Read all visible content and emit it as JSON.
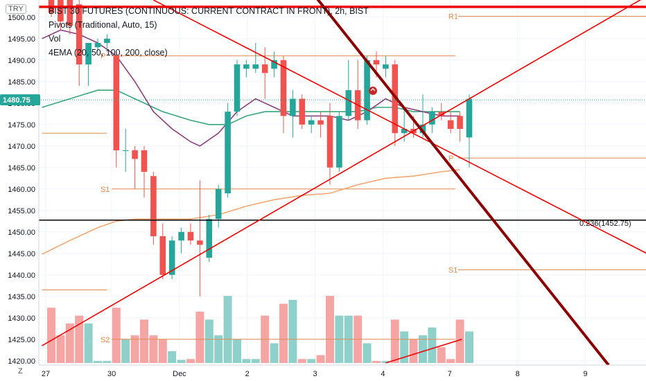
{
  "currency": "TRY",
  "legend": {
    "title": "BIST 30 FUTURES (CONTINUOUS: CURRENT CONTRACT IN FRONT), 2h, BIST",
    "pivots": "Pivots (Traditional, Auto, 15)",
    "vol": "Vol",
    "ema": "4EMA (20, 50, 100, 200, close)"
  },
  "price_badge": "1480.75",
  "fib_label": "0.236(1452.75)",
  "colors": {
    "up": "#26a69a",
    "down": "#ef5350",
    "up_vol": "#8fd1ca",
    "down_vol": "#f5a6a4",
    "pivot": "#e08a4d",
    "ema_green": "#39a77a",
    "ema_purple": "#8e3f7e",
    "ema_orange": "#f4a66f",
    "trend_red": "#ee0000",
    "trend_dark": "#8b0000",
    "badge": "#26a69a"
  },
  "chart_data": {
    "type": "candlestick",
    "symbol": "BIST 30 FUTURES (CONTINUOUS: CURRENT CONTRACT IN FRONT)",
    "interval": "2h",
    "ylim": [
      1419,
      1504
    ],
    "y_ticks": [
      1420,
      1425,
      1430,
      1435,
      1440,
      1445,
      1450,
      1455,
      1460,
      1465,
      1470,
      1475,
      1480,
      1485,
      1490,
      1495,
      1500
    ],
    "x_tick_labels": [
      {
        "label": "27",
        "index": -0.6
      },
      {
        "label": "30",
        "index": 6.5
      },
      {
        "label": "Dec",
        "index": 13.8
      },
      {
        "label": "2",
        "index": 21.1
      },
      {
        "label": "3",
        "index": 28.4
      },
      {
        "label": "4",
        "index": 35.7
      },
      {
        "label": "7",
        "index": 42.9
      },
      {
        "label": "8",
        "index": 50.2
      },
      {
        "label": "9",
        "index": 57.5
      }
    ],
    "last_price": 1480.75,
    "candles": [
      {
        "o": 1504,
        "h": 1506,
        "l": 1500,
        "c": 1501,
        "v": 14
      },
      {
        "o": 1504,
        "h": 1506,
        "l": 1497,
        "c": 1499,
        "v": 7
      },
      {
        "o": 1504,
        "h": 1505,
        "l": 1496,
        "c": 1498,
        "v": 10
      },
      {
        "o": 1503,
        "h": 1504,
        "l": 1484,
        "c": 1489,
        "v": 12
      },
      {
        "o": 1489,
        "h": 1494,
        "l": 1484,
        "c": 1494,
        "v": 10
      },
      {
        "o": 1493,
        "h": 1495,
        "l": 1492,
        "c": 1494,
        "v": 0.5
      },
      {
        "o": 1494,
        "h": 1496,
        "l": 1492,
        "c": 1495,
        "v": 0.5
      },
      {
        "o": 1491,
        "h": 1492,
        "l": 1465,
        "c": 1469,
        "v": 14
      },
      {
        "o": 1469,
        "h": 1474,
        "l": 1464,
        "c": 1469,
        "v": 6
      },
      {
        "o": 1469,
        "h": 1470,
        "l": 1460,
        "c": 1467,
        "v": 7
      },
      {
        "o": 1469,
        "h": 1470,
        "l": 1458,
        "c": 1464,
        "v": 11
      },
      {
        "o": 1463,
        "h": 1464,
        "l": 1447,
        "c": 1449,
        "v": 7
      },
      {
        "o": 1449,
        "h": 1452,
        "l": 1439,
        "c": 1440,
        "v": 6
      },
      {
        "o": 1440,
        "h": 1449,
        "l": 1439,
        "c": 1448,
        "v": 3
      },
      {
        "o": 1448,
        "h": 1451,
        "l": 1445,
        "c": 1450,
        "v": 0.8
      },
      {
        "o": 1450,
        "h": 1452,
        "l": 1447,
        "c": 1448,
        "v": 1
      },
      {
        "o": 1448,
        "h": 1462,
        "l": 1435,
        "c": 1447,
        "v": 13
      },
      {
        "o": 1444,
        "h": 1454,
        "l": 1443,
        "c": 1453,
        "v": 11
      },
      {
        "o": 1453,
        "h": 1461,
        "l": 1451,
        "c": 1460,
        "v": 7
      },
      {
        "o": 1459,
        "h": 1480,
        "l": 1458,
        "c": 1478,
        "v": 17
      },
      {
        "o": 1478,
        "h": 1490,
        "l": 1477,
        "c": 1489,
        "v": 6
      },
      {
        "o": 1488,
        "h": 1490,
        "l": 1486,
        "c": 1489,
        "v": 1
      },
      {
        "o": 1488,
        "h": 1494,
        "l": 1487,
        "c": 1489,
        "v": 1
      },
      {
        "o": 1489,
        "h": 1493,
        "l": 1481,
        "c": 1487,
        "v": 12
      },
      {
        "o": 1488,
        "h": 1492,
        "l": 1486,
        "c": 1490,
        "v": 5
      },
      {
        "o": 1490,
        "h": 1491,
        "l": 1473,
        "c": 1477,
        "v": 15
      },
      {
        "o": 1477,
        "h": 1483,
        "l": 1472,
        "c": 1481,
        "v": 16
      },
      {
        "o": 1481,
        "h": 1482,
        "l": 1474,
        "c": 1475,
        "v": 1
      },
      {
        "o": 1475,
        "h": 1477,
        "l": 1473,
        "c": 1476,
        "v": 1
      },
      {
        "o": 1476,
        "h": 1478,
        "l": 1472,
        "c": 1475,
        "v": 2
      },
      {
        "o": 1477,
        "h": 1480,
        "l": 1461,
        "c": 1465,
        "v": 17
      },
      {
        "o": 1465,
        "h": 1478,
        "l": 1464,
        "c": 1477,
        "v": 12
      },
      {
        "o": 1477,
        "h": 1490,
        "l": 1476,
        "c": 1483,
        "v": 12
      },
      {
        "o": 1483,
        "h": 1490,
        "l": 1474,
        "c": 1476,
        "v": 12
      },
      {
        "o": 1476,
        "h": 1491,
        "l": 1475,
        "c": 1490,
        "v": 5
      },
      {
        "o": 1490,
        "h": 1492,
        "l": 1486,
        "c": 1489,
        "v": 0.5
      },
      {
        "o": 1488,
        "h": 1491,
        "l": 1486,
        "c": 1489,
        "v": 0.5
      },
      {
        "o": 1489,
        "h": 1490,
        "l": 1470,
        "c": 1473,
        "v": 11
      },
      {
        "o": 1473,
        "h": 1479,
        "l": 1471,
        "c": 1474,
        "v": 8
      },
      {
        "o": 1474,
        "h": 1477,
        "l": 1472,
        "c": 1473,
        "v": 6
      },
      {
        "o": 1473,
        "h": 1482,
        "l": 1472,
        "c": 1475,
        "v": 7
      },
      {
        "o": 1475,
        "h": 1479,
        "l": 1473,
        "c": 1478,
        "v": 9
      },
      {
        "o": 1478,
        "h": 1480,
        "l": 1476,
        "c": 1477,
        "v": 4
      },
      {
        "o": 1476,
        "h": 1478,
        "l": 1473,
        "c": 1474,
        "v": 1
      },
      {
        "o": 1477,
        "h": 1478,
        "l": 1471,
        "c": 1474,
        "v": 11
      },
      {
        "o": 1472,
        "h": 1482,
        "l": 1465,
        "c": 1481,
        "v": 8
      }
    ],
    "pivot_segments": [
      {
        "label": "",
        "value": 1473.0,
        "from": -1,
        "to": 6
      },
      {
        "label": "",
        "value": 1436.5,
        "from": -1,
        "to": 6
      },
      {
        "label": "P",
        "value": 1491.0,
        "from": 6.5,
        "to": 43.5
      },
      {
        "label": "S1",
        "value": 1460.0,
        "from": 6.5,
        "to": 43.5
      },
      {
        "label": "S2",
        "value": 1425.0,
        "from": 6.5,
        "to": 43.5
      },
      {
        "label": "R1",
        "value": 1500.2,
        "from": 43.8,
        "to": 65
      },
      {
        "label": "P",
        "value": 1467.2,
        "from": 43.8,
        "to": 65
      },
      {
        "label": "S1",
        "value": 1441.2,
        "from": 43.8,
        "to": 65
      }
    ],
    "horizontal_lines": [
      {
        "value": 1502.4,
        "color": "trend_red"
      },
      {
        "value": 1452.75,
        "color": "black",
        "label": "0.236(1452.75)"
      }
    ],
    "trend_lines": [
      {
        "from": [
          -1,
          1423.5
        ],
        "to": [
          65,
          1506
        ],
        "color": "trend_red"
      },
      {
        "from": [
          11,
          1504
        ],
        "to": [
          65,
          1444
        ],
        "color": "trend_red"
      },
      {
        "from": [
          28,
          1506
        ],
        "to": [
          60,
          1419
        ],
        "color": "trend_dark"
      },
      {
        "from": [
          36,
          1419
        ],
        "to": [
          44.2,
          1425
        ],
        "color": "trend_red",
        "pane": "volume"
      }
    ],
    "ema_series": [
      {
        "color": "ema_green",
        "points": [
          [
            -1,
            1479
          ],
          [
            2,
            1481
          ],
          [
            5,
            1483
          ],
          [
            7,
            1483
          ],
          [
            9,
            1481
          ],
          [
            12,
            1478
          ],
          [
            15,
            1476
          ],
          [
            17,
            1475
          ],
          [
            19,
            1475
          ],
          [
            21,
            1477
          ],
          [
            23,
            1478
          ],
          [
            25,
            1478
          ],
          [
            28,
            1478
          ],
          [
            31,
            1478
          ],
          [
            33,
            1478
          ],
          [
            35,
            1479
          ],
          [
            37,
            1479
          ],
          [
            39,
            1478
          ],
          [
            41,
            1478
          ],
          [
            44,
            1478
          ]
        ]
      },
      {
        "color": "ema_purple",
        "points": [
          [
            -1,
            1495
          ],
          [
            1,
            1497
          ],
          [
            3,
            1496
          ],
          [
            5,
            1494
          ],
          [
            7,
            1491
          ],
          [
            9,
            1485
          ],
          [
            11,
            1478
          ],
          [
            13,
            1474
          ],
          [
            15,
            1471
          ],
          [
            16,
            1470
          ],
          [
            18,
            1473
          ],
          [
            20,
            1478
          ],
          [
            22,
            1481
          ],
          [
            24,
            1479
          ],
          [
            26,
            1477
          ],
          [
            28,
            1477
          ],
          [
            30,
            1477
          ],
          [
            32,
            1476
          ],
          [
            34,
            1478
          ],
          [
            36,
            1481
          ],
          [
            38,
            1479
          ],
          [
            40,
            1478
          ],
          [
            42,
            1477
          ],
          [
            44,
            1477
          ]
        ]
      },
      {
        "color": "ema_orange",
        "points": [
          [
            -1,
            1444.8
          ],
          [
            2,
            1448
          ],
          [
            5,
            1451
          ],
          [
            7,
            1452.5
          ],
          [
            9,
            1453
          ],
          [
            12,
            1453
          ],
          [
            15,
            1453
          ],
          [
            18,
            1454
          ],
          [
            21,
            1456
          ],
          [
            24,
            1457.5
          ],
          [
            27,
            1458.5
          ],
          [
            30,
            1459
          ],
          [
            33,
            1461
          ],
          [
            36,
            1462.5
          ],
          [
            39,
            1463
          ],
          [
            42,
            1464
          ],
          [
            44,
            1464.5
          ]
        ]
      }
    ]
  }
}
